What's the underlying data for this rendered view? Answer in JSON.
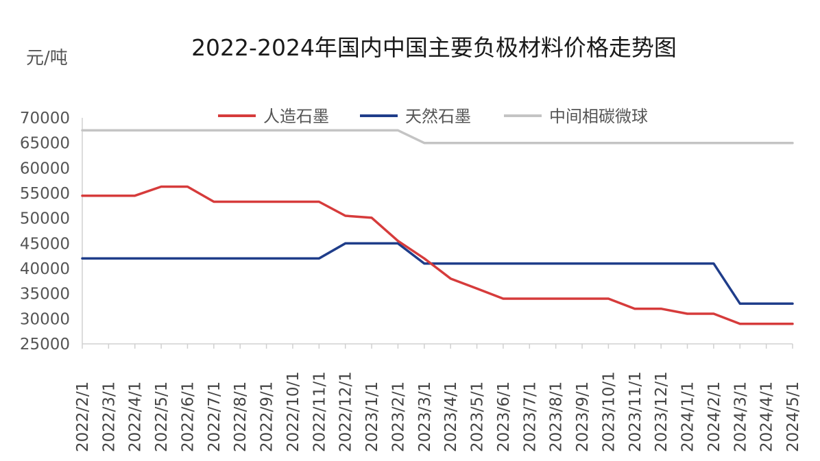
{
  "chart_data": {
    "type": "line",
    "title": "2022-2024年国内中国主要负极材料价格走势图",
    "ylabel": "元/吨",
    "xlabel": "",
    "ylim": [
      25000,
      70000
    ],
    "yticks": [
      70000,
      65000,
      60000,
      55000,
      50000,
      45000,
      40000,
      35000,
      30000,
      25000
    ],
    "grid": false,
    "legend_position": "top",
    "categories": [
      "2022/2/1",
      "2022/3/1",
      "2022/4/1",
      "2022/5/1",
      "2022/6/1",
      "2022/7/1",
      "2022/8/1",
      "2022/9/1",
      "2022/10/1",
      "2022/11/1",
      "2022/12/1",
      "2023/1/1",
      "2023/2/1",
      "2023/3/1",
      "2023/4/1",
      "2023/5/1",
      "2023/6/1",
      "2023/7/1",
      "2023/8/1",
      "2023/9/1",
      "2023/10/1",
      "2023/11/1",
      "2023/12/1",
      "2024/1/1",
      "2024/2/1",
      "2024/3/1",
      "2024/4/1",
      "2024/5/1"
    ],
    "series": [
      {
        "name": "人造石墨",
        "color": "#d63b3b",
        "values": [
          54500,
          54500,
          54500,
          56300,
          56300,
          53300,
          53300,
          53300,
          53300,
          53300,
          50500,
          50100,
          45500,
          42000,
          38000,
          36000,
          34000,
          34000,
          34000,
          34000,
          34000,
          32000,
          32000,
          31000,
          31000,
          29000,
          29000,
          29000
        ]
      },
      {
        "name": "天然石墨",
        "color": "#1f3d8a",
        "values": [
          42000,
          42000,
          42000,
          42000,
          42000,
          42000,
          42000,
          42000,
          42000,
          42000,
          45000,
          45000,
          45000,
          41000,
          41000,
          41000,
          41000,
          41000,
          41000,
          41000,
          41000,
          41000,
          41000,
          41000,
          41000,
          33000,
          33000,
          33000
        ]
      },
      {
        "name": "中间相碳微球",
        "color": "#c4c4c4",
        "values": [
          67500,
          67500,
          67500,
          67500,
          67500,
          67500,
          67500,
          67500,
          67500,
          67500,
          67500,
          67500,
          67500,
          65000,
          65000,
          65000,
          65000,
          65000,
          65000,
          65000,
          65000,
          65000,
          65000,
          65000,
          65000,
          65000,
          65000,
          65000
        ]
      }
    ]
  }
}
